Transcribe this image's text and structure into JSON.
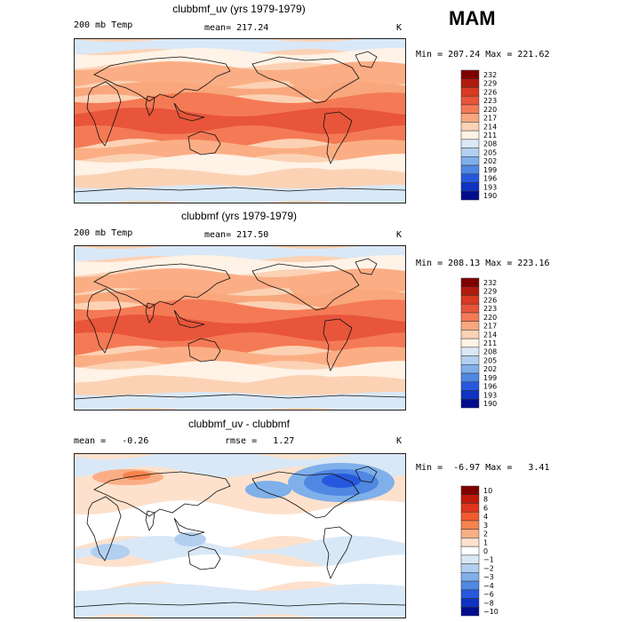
{
  "season": "MAM",
  "panels": [
    {
      "title": "clubbmf_uv (yrs 1979-1979)",
      "left_label": "200 mb Temp",
      "mean_label": "mean=",
      "mean_value": "217.24",
      "unit": "K",
      "min_max": "Min = 207.24 Max = 221.62",
      "levels": [
        "232",
        "229",
        "226",
        "223",
        "220",
        "217",
        "214",
        "211",
        "208",
        "205",
        "202",
        "199",
        "196",
        "193",
        "190"
      ],
      "colors": [
        "#800000",
        "#b01a0d",
        "#d73a20",
        "#e8553a",
        "#f47a55",
        "#f9a77d",
        "#fcd2b4",
        "#fff2e6",
        "#d9e8f7",
        "#b3cff0",
        "#7fb0ea",
        "#4f87e3",
        "#2658dd",
        "#0f33c2",
        "#000e8c"
      ]
    },
    {
      "title": "clubbmf (yrs 1979-1979)",
      "left_label": "200 mb Temp",
      "mean_label": "mean=",
      "mean_value": "217.50",
      "unit": "K",
      "min_max": "Min = 208.13 Max = 223.16",
      "levels": [
        "232",
        "229",
        "226",
        "223",
        "220",
        "217",
        "214",
        "211",
        "208",
        "205",
        "202",
        "199",
        "196",
        "193",
        "190"
      ],
      "colors": [
        "#800000",
        "#b01a0d",
        "#d73a20",
        "#e8553a",
        "#f47a55",
        "#f9a77d",
        "#fcd2b4",
        "#fff2e6",
        "#d9e8f7",
        "#b3cff0",
        "#7fb0ea",
        "#4f87e3",
        "#2658dd",
        "#0f33c2",
        "#000e8c"
      ]
    },
    {
      "title": "clubbmf_uv - clubbmf",
      "left_label": "mean =   -0.26",
      "mean_label": "rmse =",
      "mean_value": "1.27",
      "unit": "K",
      "min_max": "Min =  -6.97 Max =   3.41",
      "levels": [
        "10",
        "8",
        "6",
        "4",
        "3",
        "2",
        "1",
        "0",
        "−1",
        "−2",
        "−3",
        "−4",
        "−6",
        "−8",
        "−10"
      ],
      "colors": [
        "#800000",
        "#c01a0a",
        "#e0341c",
        "#f45a2e",
        "#f8834f",
        "#fbae85",
        "#fde1cc",
        "#ffffff",
        "#d9e8f7",
        "#b3cff0",
        "#7fb0ea",
        "#4f87e3",
        "#2658dd",
        "#0f33c2",
        "#000e8c"
      ]
    }
  ],
  "chart_data": {
    "type": "heatmap",
    "season": "MAM",
    "variable": "200 mb Temp",
    "units": "K",
    "maps": [
      {
        "title": "clubbmf_uv (yrs 1979-1979)",
        "mean": 217.24,
        "min": 207.24,
        "max": 221.62,
        "contour_levels": [
          190,
          193,
          196,
          199,
          202,
          205,
          208,
          211,
          214,
          217,
          220,
          223,
          226,
          229,
          232
        ]
      },
      {
        "title": "clubbmf (yrs 1979-1979)",
        "mean": 217.5,
        "min": 208.13,
        "max": 223.16,
        "contour_levels": [
          190,
          193,
          196,
          199,
          202,
          205,
          208,
          211,
          214,
          217,
          220,
          223,
          226,
          229,
          232
        ]
      },
      {
        "title": "clubbmf_uv - clubbmf",
        "mean": -0.26,
        "rmse": 1.27,
        "min": -6.97,
        "max": 3.41,
        "contour_levels": [
          -10,
          -8,
          -6,
          -4,
          -3,
          -2,
          -1,
          0,
          1,
          2,
          3,
          4,
          6,
          8,
          10
        ]
      }
    ]
  }
}
